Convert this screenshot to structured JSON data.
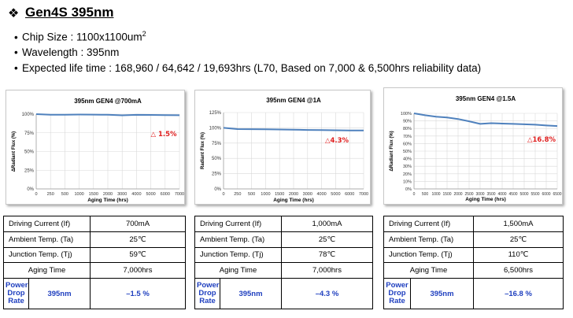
{
  "header": {
    "bullet_icon": "diamond-bullet",
    "title": "Gen4S 395nm"
  },
  "specs": [
    {
      "prefix": "Chip Size : 1100x1100um",
      "sup": "2"
    },
    {
      "prefix": "Wavelength : 395nm",
      "sup": ""
    },
    {
      "prefix": "Expected life time : 168,960 / 64,642 / 19,693hrs (L70, Based on 7,000 & 6,500hrs reliability data)",
      "sup": ""
    }
  ],
  "tables": [
    {
      "rows": [
        {
          "label": "Driving Current (If)",
          "value": "700mA"
        },
        {
          "label": "Ambient Temp. (Ta)",
          "value": "25℃"
        },
        {
          "label": "Junction Temp. (Tj)",
          "value": "59℃"
        },
        {
          "label": "Aging Time",
          "value": "7,000hrs"
        }
      ],
      "pdr": {
        "label": "Power Drop Rate",
        "wavelength": "395nm",
        "value": "–1.5 %"
      }
    },
    {
      "rows": [
        {
          "label": "Driving Current (If)",
          "value": "1,000mA"
        },
        {
          "label": "Ambient Temp. (Ta)",
          "value": "25℃"
        },
        {
          "label": "Junction Temp. (Tj)",
          "value": "78℃"
        },
        {
          "label": "Aging Time",
          "value": "7,000hrs"
        }
      ],
      "pdr": {
        "label": "Power Drop Rate",
        "wavelength": "395nm",
        "value": "–4.3 %"
      }
    },
    {
      "rows": [
        {
          "label": "Driving Current (If)",
          "value": "1,500mA"
        },
        {
          "label": "Ambient Temp. (Ta)",
          "value": "25℃"
        },
        {
          "label": "Junction Temp. (Tj)",
          "value": "110℃"
        },
        {
          "label": "Aging Time",
          "value": "6,500hrs"
        }
      ],
      "pdr": {
        "label": "Power Drop Rate",
        "wavelength": "395nm",
        "value": "–16.8 %"
      }
    }
  ],
  "chart_data": [
    {
      "type": "line",
      "title": "395nm GEN4 @700mA",
      "xlabel": "Aging Time (hrs)",
      "ylabel": "ΔRadiant Flux (%)",
      "x_ticks": [
        0,
        250,
        500,
        1000,
        1500,
        2000,
        3000,
        4000,
        5000,
        6000,
        7000
      ],
      "y_ticks": [
        "0%",
        "25%",
        "50%",
        "75%",
        "100%"
      ],
      "ylim": [
        0,
        100
      ],
      "x": [
        0,
        1,
        2,
        3,
        4,
        5,
        6,
        7,
        8,
        9,
        10
      ],
      "values": [
        100,
        99.2,
        99.3,
        99.5,
        99.4,
        99.2,
        98.4,
        99.1,
        98.9,
        98.6,
        98.5
      ],
      "annotation": "△ 1.5%",
      "annotation_color": "#e02020",
      "line_color": "#4f81bd",
      "grid": true
    },
    {
      "type": "line",
      "title": "395nm GEN4 @1A",
      "xlabel": "Aging Time (hrs)",
      "ylabel": "Radiant Flux (%)",
      "x_ticks": [
        0,
        250,
        500,
        1000,
        1500,
        2000,
        3000,
        4000,
        5000,
        6000,
        7000
      ],
      "y_ticks": [
        "0%",
        "25%",
        "50%",
        "75%",
        "100%",
        "125%"
      ],
      "ylim": [
        0,
        125
      ],
      "x": [
        0,
        1,
        2,
        3,
        4,
        5,
        6,
        7,
        8,
        9,
        10
      ],
      "values": [
        100,
        98,
        97.8,
        97.6,
        97.3,
        97,
        96.5,
        96.2,
        96,
        95.8,
        95.7
      ],
      "annotation": "△4.3%",
      "annotation_color": "#e02020",
      "line_color": "#4f81bd",
      "grid": true
    },
    {
      "type": "line",
      "title": "395nm GEN4 @1.5A",
      "xlabel": "Aging Time (hrs)",
      "ylabel": "ΔRadiant Flux (%)",
      "x_ticks": [
        0,
        500,
        1000,
        1500,
        2000,
        2500,
        3000,
        3500,
        4000,
        4500,
        5000,
        5500,
        6000,
        6500
      ],
      "y_ticks": [
        "0%",
        "10%",
        "20%",
        "30%",
        "40%",
        "50%",
        "60%",
        "70%",
        "80%",
        "90%",
        "100%"
      ],
      "ylim": [
        0,
        100
      ],
      "x": [
        0,
        500,
        1000,
        1500,
        2000,
        2500,
        3000,
        3500,
        4000,
        4500,
        5000,
        5500,
        6000,
        6500
      ],
      "values": [
        100,
        97.5,
        95.5,
        94.5,
        92.5,
        89.5,
        86,
        87,
        86.5,
        86,
        85.5,
        85,
        84,
        83.2
      ],
      "annotation": "△16.8%",
      "annotation_color": "#e02020",
      "line_color": "#4f81bd",
      "grid": true
    }
  ]
}
